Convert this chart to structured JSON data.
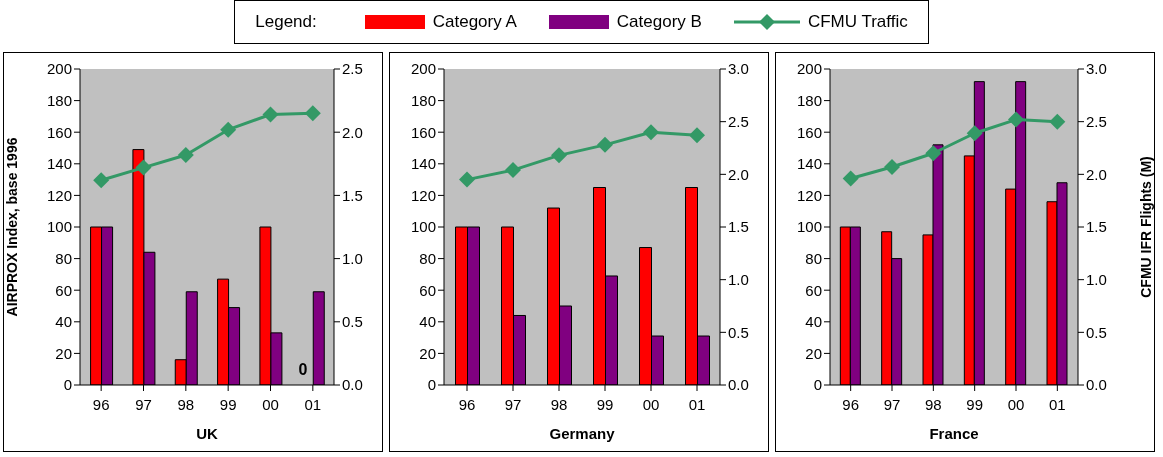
{
  "chart_data": [
    {
      "type": "bar",
      "xlabel": "UK",
      "ylabel": "AIRPROX Index, base 1996",
      "legend_title": "Legend:",
      "legend": "top",
      "grid": false,
      "categories": [
        "96",
        "97",
        "98",
        "99",
        "00",
        "01"
      ],
      "ylim": [
        0,
        200
      ],
      "yticks": [
        0,
        20,
        40,
        60,
        80,
        100,
        120,
        140,
        160,
        180,
        200
      ],
      "y2lim": [
        0,
        2.5
      ],
      "y2ticks": [
        {
          "value": 0,
          "label": "0.0"
        },
        0.5,
        {
          "value": 1,
          "label": "1.0"
        },
        1.5,
        {
          "value": 2,
          "label": "2.0"
        },
        2.5
      ],
      "annotations": [
        {
          "text": "0",
          "x": "01",
          "y": 0
        }
      ],
      "series": [
        {
          "name": "Category A",
          "color": "#ff0000",
          "values": [
            100,
            149,
            16,
            67,
            100,
            0
          ]
        },
        {
          "name": "Category B",
          "color": "#800080",
          "values": [
            100,
            84,
            59,
            49,
            33,
            59
          ]
        },
        {
          "name": "CFMU Traffic",
          "type": "line",
          "axis": "y2",
          "marker": "diamond",
          "color": "#339966",
          "values": [
            1.62,
            1.72,
            1.82,
            2.02,
            2.14,
            2.15
          ]
        }
      ]
    },
    {
      "type": "bar",
      "xlabel": "Germany",
      "grid": false,
      "categories": [
        "96",
        "97",
        "98",
        "99",
        "00",
        "01"
      ],
      "ylim": [
        0,
        200
      ],
      "yticks": [
        0,
        20,
        40,
        60,
        80,
        100,
        120,
        140,
        160,
        180,
        200
      ],
      "y2lim": [
        0,
        3
      ],
      "y2ticks": [
        {
          "value": 0,
          "label": "0.0"
        },
        0.5,
        {
          "value": 1,
          "label": "1.0"
        },
        1.5,
        {
          "value": 2,
          "label": "2.0"
        },
        2.5,
        {
          "value": 3,
          "label": "3.0"
        }
      ],
      "series": [
        {
          "color": "#ff0000",
          "values": [
            100,
            100,
            112,
            125,
            87,
            125
          ]
        },
        {
          "color": "#800080",
          "values": [
            100,
            44,
            50,
            69,
            31,
            31
          ]
        },
        {
          "type": "line",
          "axis": "y2",
          "marker": "diamond",
          "color": "#339966",
          "values": [
            1.95,
            2.04,
            2.18,
            2.28,
            2.4,
            2.37
          ]
        }
      ]
    },
    {
      "type": "bar",
      "xlabel": "France",
      "y2label": "CFMU IFR Flights (M)",
      "grid": false,
      "categories": [
        "96",
        "97",
        "98",
        "99",
        "00",
        "01"
      ],
      "ylim": [
        0,
        200
      ],
      "yticks": [
        0,
        20,
        40,
        60,
        80,
        100,
        120,
        140,
        160,
        180,
        200
      ],
      "y2lim": [
        0,
        3
      ],
      "y2ticks": [
        {
          "value": 0,
          "label": "0.0"
        },
        0.5,
        {
          "value": 1,
          "label": "1.0"
        },
        1.5,
        {
          "value": 2,
          "label": "2.0"
        },
        2.5,
        {
          "value": 3,
          "label": "3.0"
        }
      ],
      "series": [
        {
          "color": "#ff0000",
          "values": [
            100,
            97,
            95,
            145,
            124,
            116
          ]
        },
        {
          "color": "#800080",
          "values": [
            100,
            80,
            152,
            192,
            192,
            128
          ]
        },
        {
          "type": "line",
          "axis": "y2",
          "marker": "diamond",
          "color": "#339966",
          "values": [
            1.96,
            2.07,
            2.2,
            2.39,
            2.52,
            2.5
          ]
        }
      ]
    }
  ]
}
